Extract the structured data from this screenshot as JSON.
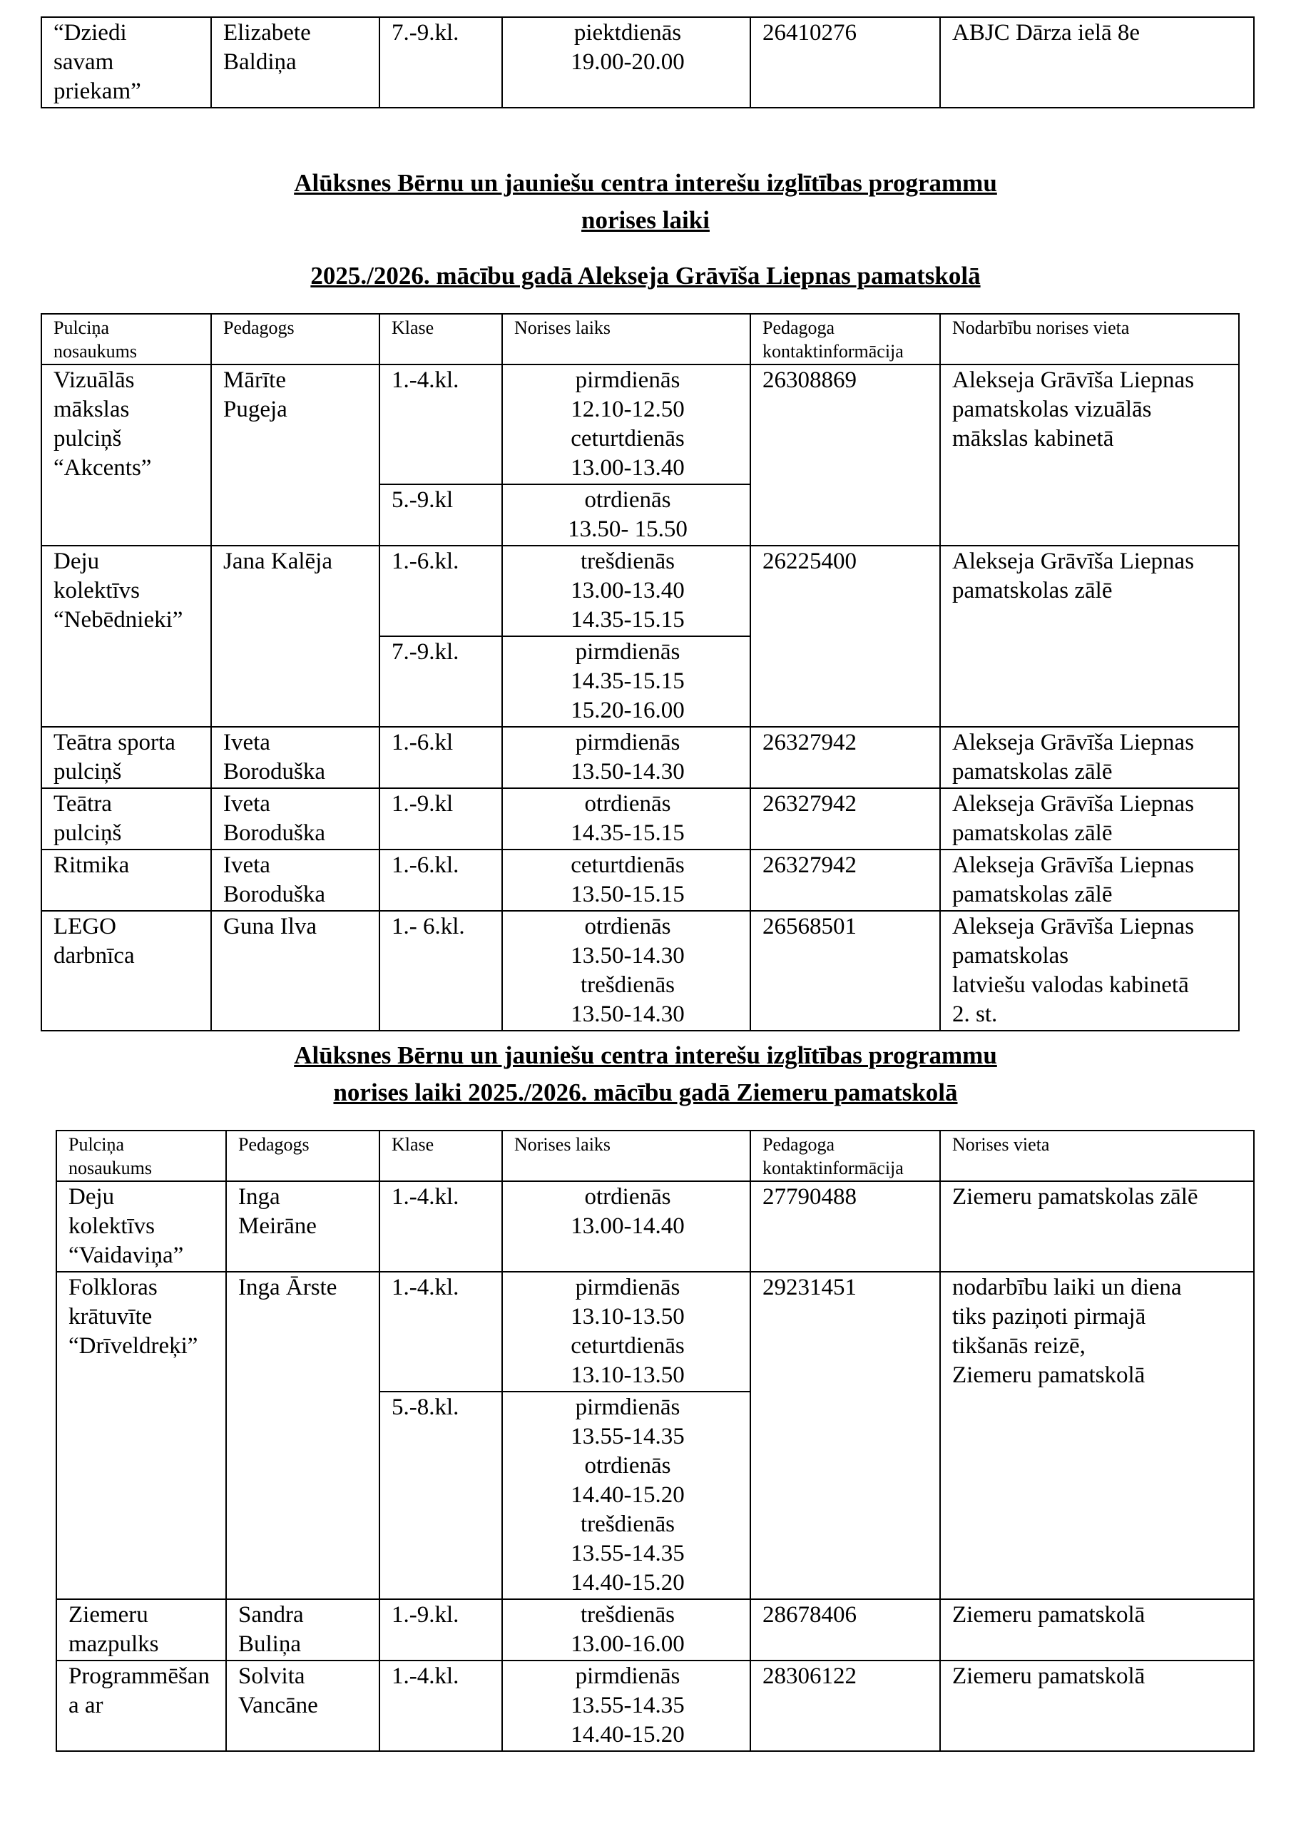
{
  "headings": {
    "liepna": [
      "Alūksnes Bērnu un jauniešu centra interešu izglītības programmu",
      "norises laiki",
      "2025./2026. mācību gadā Alekseja Grāvīša Liepnas pamatskolā"
    ],
    "ziemeri": [
      "Alūksnes Bērnu un jauniešu centra interešu izglītības programmu",
      "norises laiki 2025./2026. mācību gadā Ziemeru pamatskolā"
    ]
  },
  "tables": [
    {
      "id": "abjc-continued",
      "headers": [],
      "rows": [
        {
          "name": "“Dziedi\nsavam\npriekam”",
          "teacher": "Elizabete\nBaldiņa",
          "sessions": [
            {
              "class": "7.-9.kl.",
              "times": "piektdienās\n19.00-20.00"
            }
          ],
          "phone": "26410276",
          "place": "ABJC Dārza ielā 8e"
        }
      ]
    },
    {
      "id": "liepna",
      "headers": [
        "Pulciņa\nnosaukums",
        "Pedagogs",
        "Klase",
        "Norises laiks",
        "Pedagoga\nkontaktinformācija",
        "Nodarbību norises vieta"
      ],
      "rows": [
        {
          "name": "Vizuālās\nmākslas\npulciņš\n“Akcents”",
          "teacher": "Mārīte\nPugeja",
          "sessions": [
            {
              "class": "1.-4.kl.",
              "times": "pirmdienās\n12.10-12.50\nceturtdienās\n13.00-13.40"
            },
            {
              "class": "5.-9.kl",
              "times": "otrdienās\n13.50- 15.50"
            }
          ],
          "phone": "26308869",
          "place": "Alekseja Grāvīša Liepnas\npamatskolas vizuālās\nmākslas kabinetā"
        },
        {
          "name": "Deju\nkolektīvs\n“Nebēdnieki”",
          "teacher": "Jana Kalēja",
          "sessions": [
            {
              "class": "1.-6.kl.",
              "times": "trešdienās\n13.00-13.40\n14.35-15.15"
            },
            {
              "class": "7.-9.kl.",
              "times": "pirmdienās\n14.35-15.15\n15.20-16.00"
            }
          ],
          "phone": "26225400",
          "place": "Alekseja Grāvīša Liepnas\npamatskolas zālē"
        },
        {
          "name": "Teātra sporta\npulciņš",
          "teacher": "Iveta\nBoroduška",
          "sessions": [
            {
              "class": "1.-6.kl",
              "times": "pirmdienās\n13.50-14.30"
            }
          ],
          "phone": "26327942",
          "place": "Alekseja Grāvīša Liepnas\npamatskolas zālē"
        },
        {
          "name": "Teātra\npulciņš",
          "teacher": "Iveta\nBoroduška",
          "sessions": [
            {
              "class": "1.-9.kl",
              "times": "otrdienās\n14.35-15.15"
            }
          ],
          "phone": "26327942",
          "place": "Alekseja Grāvīša Liepnas\npamatskolas zālē"
        },
        {
          "name": "Ritmika",
          "teacher": "Iveta\nBoroduška",
          "sessions": [
            {
              "class": "1.-6.kl.",
              "times": "ceturtdienās\n13.50-15.15"
            }
          ],
          "phone": "26327942",
          "place": "Alekseja Grāvīša Liepnas\npamatskolas zālē"
        },
        {
          "name": "LEGO\ndarbnīca",
          "teacher": "Guna Ilva",
          "sessions": [
            {
              "class": "1.- 6.kl.",
              "times": "otrdienās\n13.50-14.30\ntrešdienās\n13.50-14.30"
            }
          ],
          "phone": "26568501",
          "place": "Alekseja Grāvīša Liepnas\npamatskolas\nlatviešu valodas kabinetā\n2. st."
        }
      ]
    },
    {
      "id": "ziemeri",
      "headers": [
        "Pulciņa\nnosaukums",
        "Pedagogs",
        "Klase",
        "Norises laiks",
        "Pedagoga\nkontaktinformācija",
        "Norises vieta"
      ],
      "rows": [
        {
          "name": "Deju\nkolektīvs\n“Vaidaviņa”",
          "teacher": "  Inga\nMeirāne",
          "sessions": [
            {
              "class": "1.-4.kl.",
              "times": "otrdienās\n13.00-14.40"
            }
          ],
          "phone": "27790488",
          "place": "Ziemeru pamatskolas zālē"
        },
        {
          "name": "Folkloras\nkrātuvīte\n“Drīveldreķi”",
          "teacher": "Inga Ārste",
          "sessions": [
            {
              "class": "1.-4.kl.",
              "times": "pirmdienās\n13.10-13.50\nceturtdienās\n13.10-13.50"
            },
            {
              "class": "5.-8.kl.",
              "times": "pirmdienās\n13.55-14.35\notrdienās\n14.40-15.20\ntrešdienās\n13.55-14.35\n14.40-15.20"
            }
          ],
          "phone": "29231451",
          "place": "nodarbību laiki un diena\ntiks paziņoti pirmajā\ntikšanās reizē,\nZiemeru pamatskolā"
        },
        {
          "name": "Ziemeru\nmazpulks",
          "teacher": "Sandra\nBuliņa",
          "sessions": [
            {
              "class": "1.-9.kl.",
              "times": "trešdienās\n13.00-16.00"
            }
          ],
          "phone": "28678406",
          "place": "Ziemeru pamatskolā"
        },
        {
          "name": "Programmēšan\na ar",
          "teacher": "Solvita\nVancāne",
          "sessions": [
            {
              "class": "1.-4.kl.",
              "times": "pirmdienās\n13.55-14.35\n14.40-15.20"
            }
          ],
          "phone": "28306122",
          "place": "Ziemeru pamatskolā"
        }
      ]
    }
  ]
}
